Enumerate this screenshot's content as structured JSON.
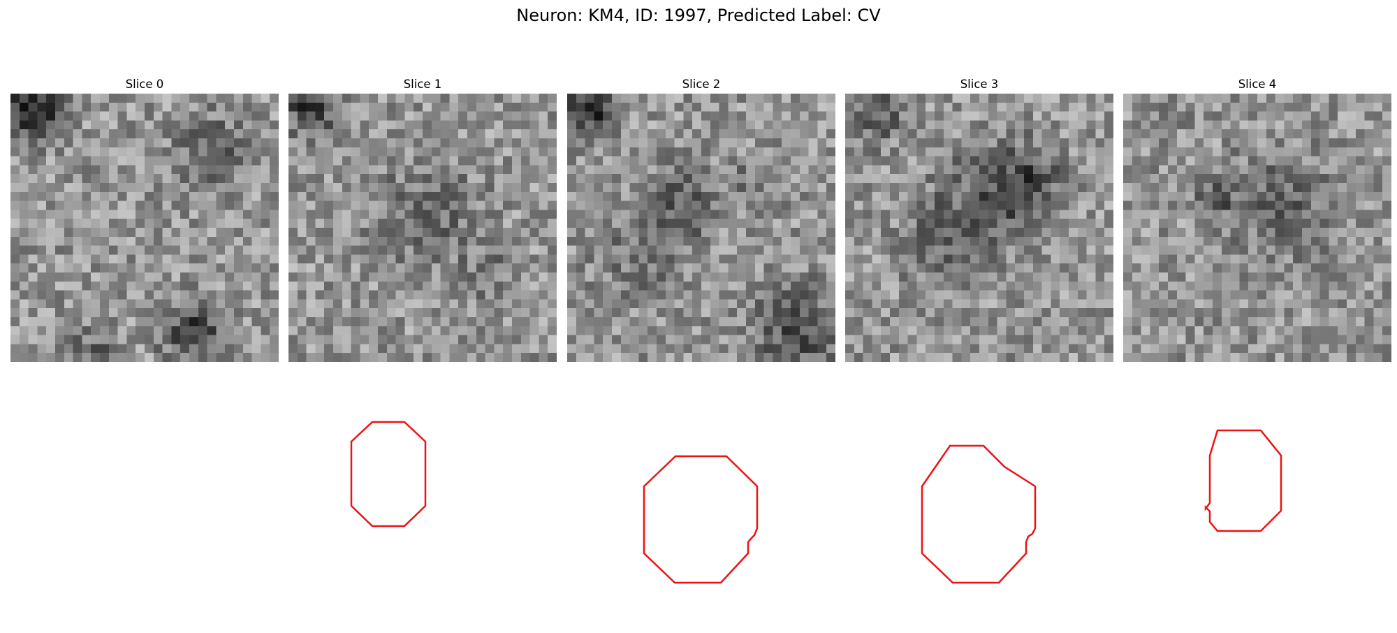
{
  "figure": {
    "title": "Neuron: KM4, ID: 1997, Predicted Label: CV"
  },
  "slices": [
    {
      "title": "Slice 0",
      "has_contour": false,
      "contour_color": "#ee1111"
    },
    {
      "title": "Slice 1",
      "has_contour": true,
      "contour_color": "#ee1111"
    },
    {
      "title": "Slice 2",
      "has_contour": true,
      "contour_color": "#ee1111"
    },
    {
      "title": "Slice 3",
      "has_contour": true,
      "contour_color": "#ee1111"
    },
    {
      "title": "Slice 4",
      "has_contour": true,
      "contour_color": "#ee1111"
    }
  ]
}
